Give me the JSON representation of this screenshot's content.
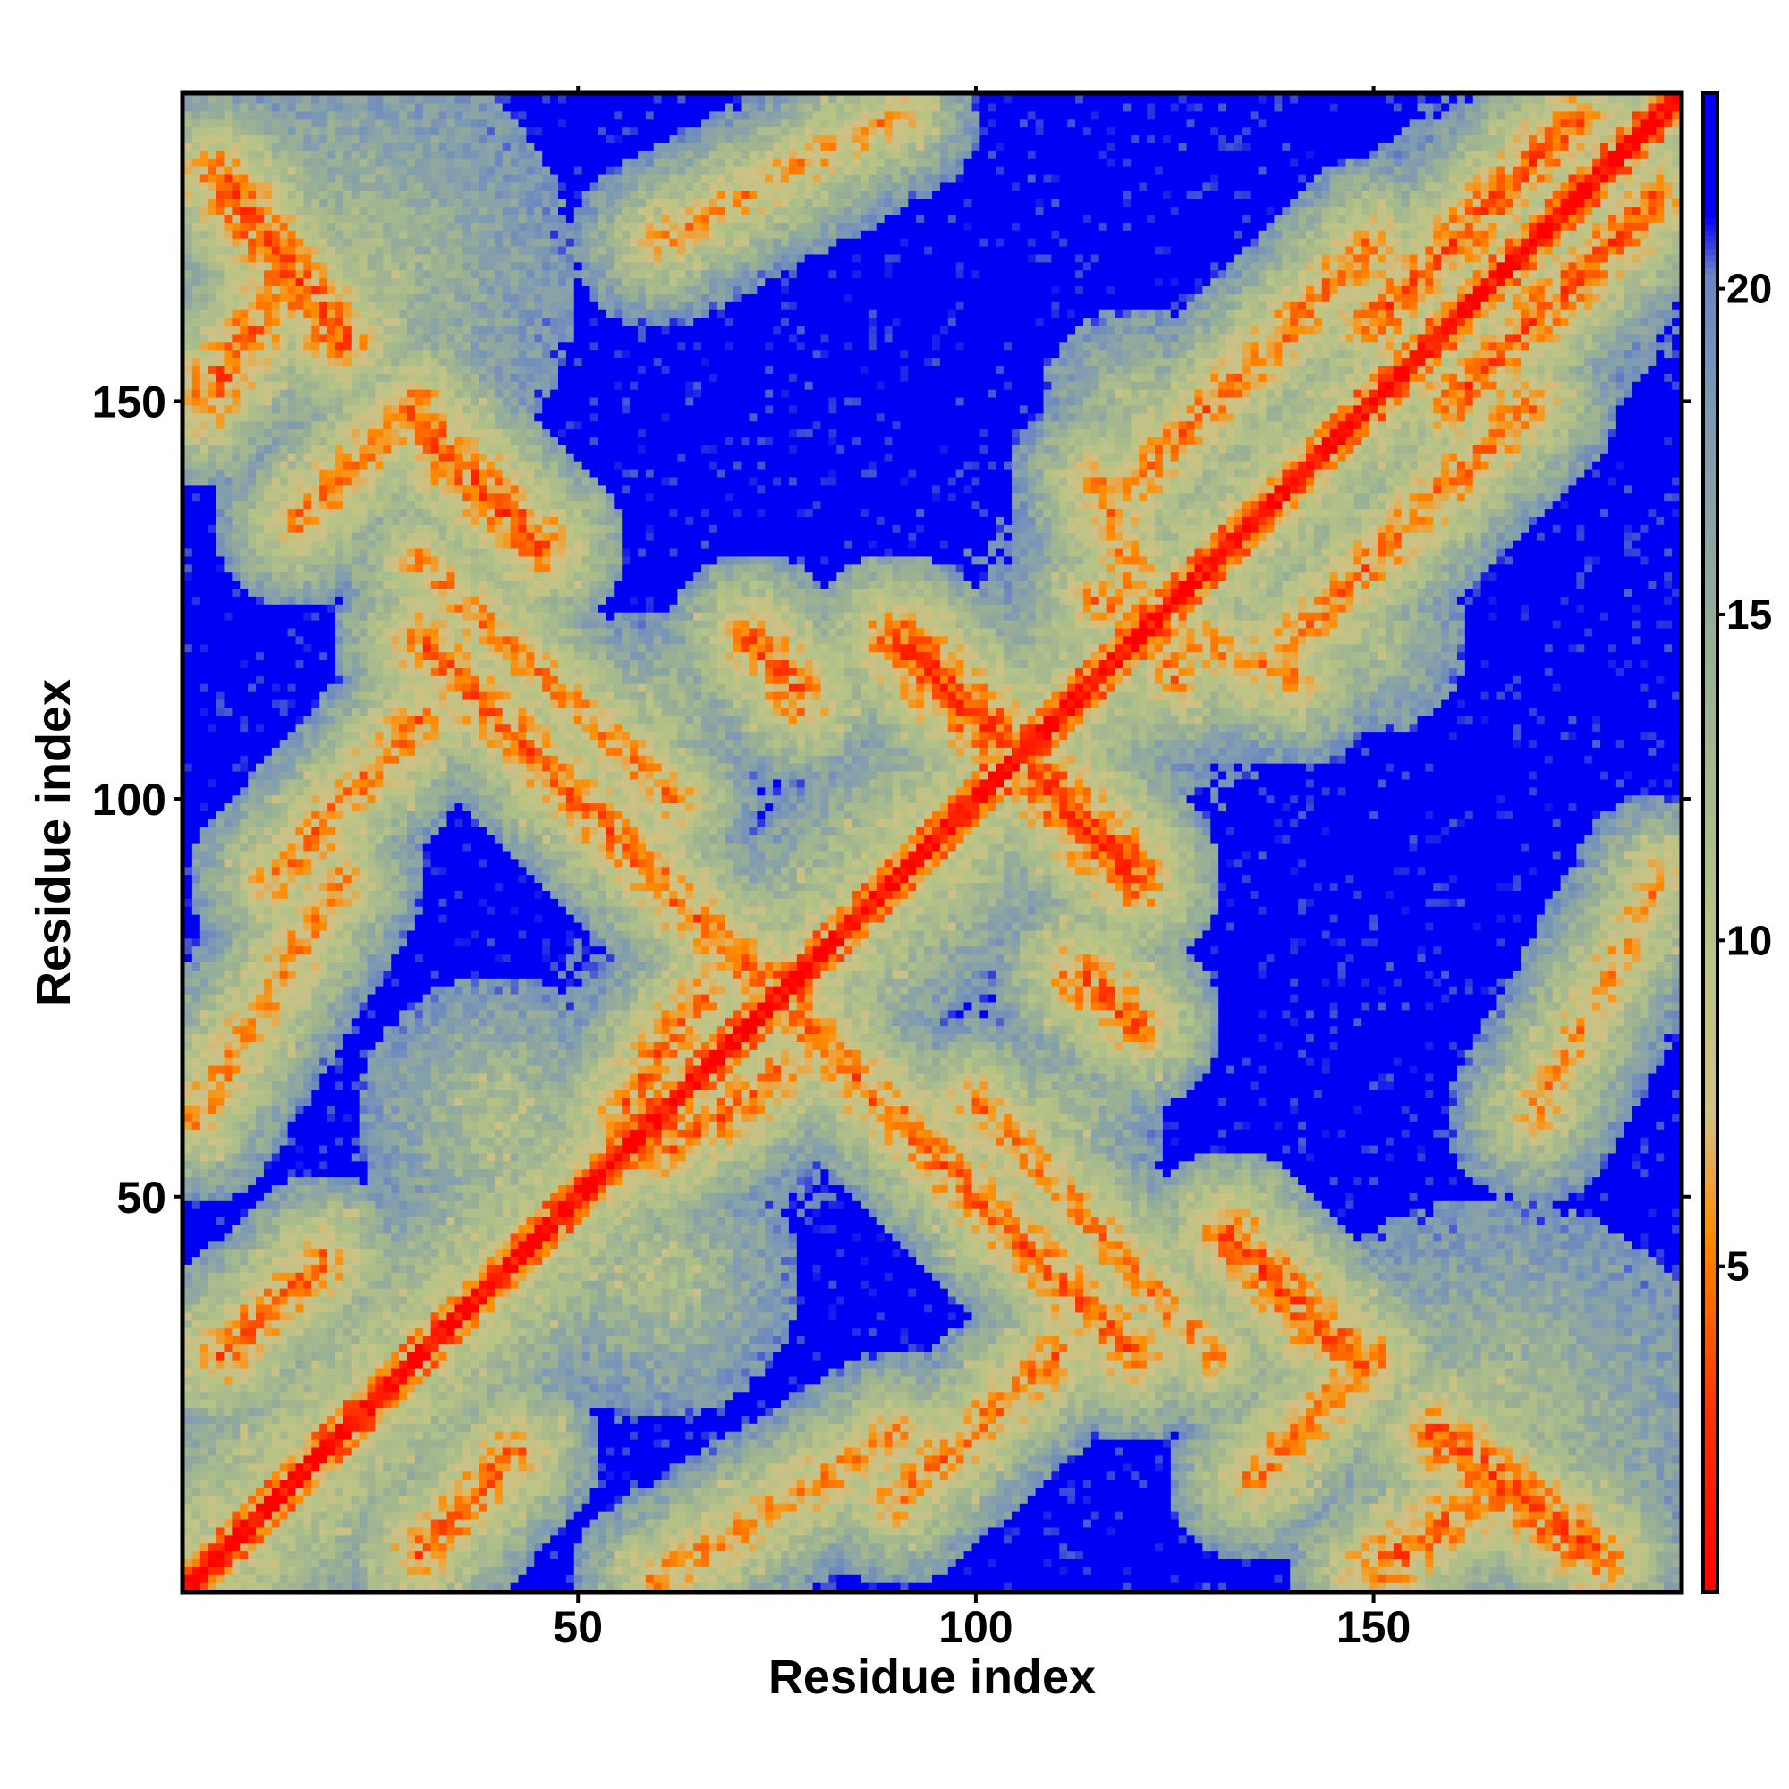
{
  "chart_data": {
    "type": "heatmap",
    "n": 188,
    "xlabel": "Residue index",
    "ylabel": "Residue index",
    "x_ticks": [
      "50",
      "100",
      "150"
    ],
    "y_ticks": [
      "50",
      "100",
      "150"
    ],
    "x_tick_values": [
      50,
      100,
      150
    ],
    "y_tick_values": [
      50,
      100,
      150
    ],
    "colorbar_ticks": [
      "5",
      "10",
      "15",
      "20"
    ],
    "colorbar_tick_values": [
      5,
      10,
      15,
      20
    ],
    "value_range": [
      0,
      23
    ],
    "saturation_value": 21,
    "colorscale": [
      {
        "stop": 0.0,
        "color": "#ff0000"
      },
      {
        "stop": 0.12,
        "color": "#ff3000"
      },
      {
        "stop": 0.24,
        "color": "#ff8c00"
      },
      {
        "stop": 0.32,
        "color": "#d2c084"
      },
      {
        "stop": 0.44,
        "color": "#b7c486"
      },
      {
        "stop": 0.62,
        "color": "#9ab094"
      },
      {
        "stop": 0.78,
        "color": "#7f9bb2"
      },
      {
        "stop": 0.88,
        "color": "#6a86c0"
      },
      {
        "stop": 0.92,
        "color": "#0000f5"
      },
      {
        "stop": 1.0,
        "color": "#0000f5"
      }
    ],
    "contact_segments": [
      {
        "from": [
          5,
          178
        ],
        "to": [
          20,
          158
        ],
        "strength": 0.9
      },
      {
        "from": [
          30,
          147
        ],
        "to": [
          45,
          132
        ],
        "strength": 0.9
      },
      {
        "from": [
          75,
          75
        ],
        "to": [
          120,
          30
        ],
        "strength": 0.7
      },
      {
        "from": [
          93,
          118
        ],
        "to": [
          103,
          108
        ],
        "strength": 1.0
      },
      {
        "from": [
          110,
          100
        ],
        "to": [
          120,
          90
        ],
        "strength": 1.0
      },
      {
        "from": [
          113,
          78
        ],
        "to": [
          120,
          72
        ],
        "strength": 0.8
      },
      {
        "from": [
          150,
          3
        ],
        "to": [
          165,
          13
        ],
        "strength": 0.8
      },
      {
        "from": [
          135,
          15
        ],
        "to": [
          150,
          30
        ],
        "strength": 0.6
      },
      {
        "from": [
          5,
          30
        ],
        "to": [
          18,
          42
        ],
        "strength": 0.7
      },
      {
        "from": [
          90,
          12
        ],
        "to": [
          110,
          30
        ],
        "strength": 0.6
      },
      {
        "from": [
          150,
          160
        ],
        "to": [
          175,
          185
        ],
        "strength": 0.8
      },
      {
        "from": [
          30,
          130
        ],
        "to": [
          62,
          100
        ],
        "strength": 0.5
      },
      {
        "from": [
          120,
          140
        ],
        "to": [
          150,
          170
        ],
        "strength": 0.6
      },
      {
        "from": [
          55,
          60
        ],
        "to": [
          65,
          75
        ],
        "strength": 0.7
      },
      {
        "from": [
          115,
          125
        ],
        "to": [
          140,
          115
        ],
        "strength": 0.5
      },
      {
        "from": [
          2,
          60
        ],
        "to": [
          20,
          90
        ],
        "strength": 0.5
      },
      {
        "from": [
          170,
          60
        ],
        "to": [
          186,
          90
        ],
        "strength": 0.4
      },
      {
        "from": [
          60,
          2
        ],
        "to": [
          90,
          20
        ],
        "strength": 0.5
      }
    ],
    "domains": [
      {
        "center": [
          100,
          100
        ],
        "radius": 22
      },
      {
        "center": [
          20,
          165
        ],
        "radius": 30
      },
      {
        "center": [
          165,
          20
        ],
        "radius": 30
      },
      {
        "center": [
          75,
          75
        ],
        "radius": 20
      },
      {
        "center": [
          25,
          25
        ],
        "radius": 20
      },
      {
        "center": [
          165,
          165
        ],
        "radius": 22
      },
      {
        "center": [
          130,
          130
        ],
        "radius": 20
      },
      {
        "center": [
          40,
          60
        ],
        "radius": 18
      },
      {
        "center": [
          60,
          40
        ],
        "radius": 18
      },
      {
        "center": [
          110,
          60
        ],
        "radius": 14
      },
      {
        "center": [
          60,
          110
        ],
        "radius": 14
      },
      {
        "center": [
          150,
          120
        ],
        "radius": 12
      },
      {
        "center": [
          120,
          150
        ],
        "radius": 12
      }
    ]
  }
}
